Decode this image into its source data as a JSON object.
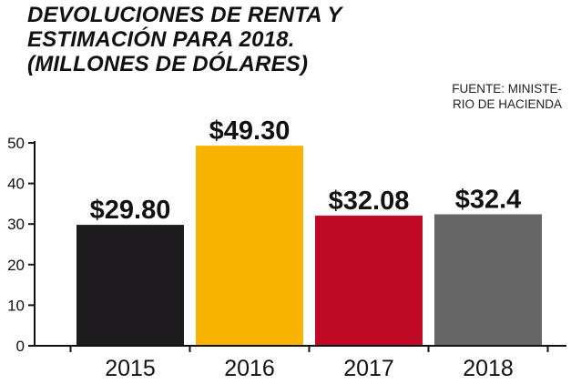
{
  "title_lines": [
    "DEVOLUCIONES DE RENTA Y",
    "ESTIMACIÓN PARA 2018.",
    "(MILLONES DE DÓLARES)"
  ],
  "source_lines": [
    "FUENTE: MINISTE-",
    "RIO DE HACIENDA"
  ],
  "chart_data": {
    "type": "bar",
    "categories": [
      "2015",
      "2016",
      "2017",
      "2018"
    ],
    "values": [
      29.8,
      49.3,
      32.08,
      32.4
    ],
    "value_labels": [
      "$29.80",
      "$49.30",
      "$32.08",
      "$32.4"
    ],
    "colors": [
      "#1e1b1f",
      "#f8b200",
      "#c00a25",
      "#666666"
    ],
    "title": "DEVOLUCIONES DE RENTA Y ESTIMACIÓN PARA 2018. (MILLONES DE DÓLARES)",
    "xlabel": "",
    "ylabel": "",
    "ylim": [
      0,
      50
    ],
    "yticks": [
      0,
      10,
      20,
      30,
      40,
      50
    ],
    "grid": false,
    "legend": "none"
  }
}
